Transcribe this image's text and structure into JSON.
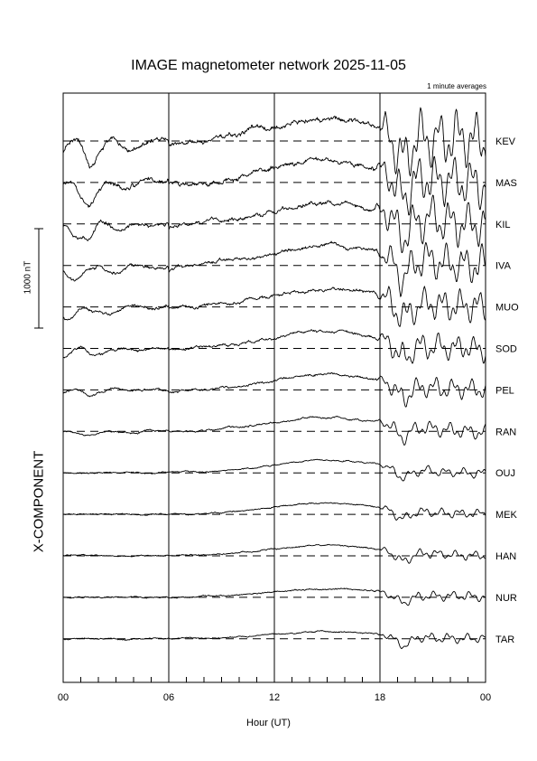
{
  "chart_data": {
    "type": "line",
    "title": "IMAGE magnetometer network 2025-11-05",
    "subtitle": "1 minute averages",
    "component_label": "X-COMPONENT",
    "xlabel": "Hour (UT)",
    "scale_bar_label": "1000 nT",
    "x_ticks": [
      "00",
      "06",
      "12",
      "18",
      "00"
    ],
    "xlim_hours": [
      0,
      24
    ],
    "grid_vertical_hours": [
      6,
      12,
      18
    ],
    "stations": [
      {
        "name": "KEV",
        "id": 0
      },
      {
        "name": "MAS",
        "id": 1
      },
      {
        "name": "KIL",
        "id": 2
      },
      {
        "name": "IVA",
        "id": 3
      },
      {
        "name": "MUO",
        "id": 4
      },
      {
        "name": "SOD",
        "id": 5
      },
      {
        "name": "PEL",
        "id": 6
      },
      {
        "name": "RAN",
        "id": 7
      },
      {
        "name": "OUJ",
        "id": 8
      },
      {
        "name": "MEK",
        "id": 9
      },
      {
        "name": "HAN",
        "id": 10
      },
      {
        "name": "NUR",
        "id": 11
      },
      {
        "name": "TAR",
        "id": 12
      }
    ]
  }
}
